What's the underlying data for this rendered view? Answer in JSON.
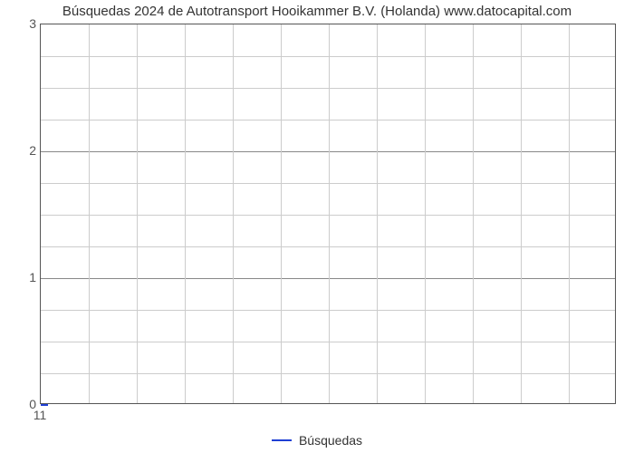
{
  "chart": {
    "type": "line",
    "title": "Búsquedas 2024 de Autotransport Hooikammer B.V. (Holanda) www.datocapital.com",
    "title_fontsize": 15,
    "title_color": "#333333",
    "background_color": "#ffffff",
    "plot_border_color": "#555555",
    "grid_minor_color": "#cccccc",
    "grid_major_color": "#888888",
    "xlim": [
      11,
      23
    ],
    "ylim": [
      0,
      3
    ],
    "ytick_major_positions": [
      0,
      1,
      2,
      3
    ],
    "ytick_labels": [
      "0",
      "1",
      "2",
      "3"
    ],
    "y_minor_per_major": 4,
    "xtick_major_positions": [
      11
    ],
    "xtick_labels": [
      "11"
    ],
    "x_gridline_positions": [
      11,
      12,
      13,
      14,
      15,
      16,
      17,
      18,
      19,
      20,
      21,
      22,
      23
    ],
    "tick_fontsize": 14,
    "tick_color": "#555555",
    "series": [
      {
        "name": "Búsquedas",
        "color": "#1f3fd4",
        "line_width": 2,
        "points": [
          [
            11,
            0
          ]
        ]
      }
    ],
    "legend": {
      "position": "bottom-center",
      "fontsize": 14,
      "text_color": "#333333"
    }
  }
}
